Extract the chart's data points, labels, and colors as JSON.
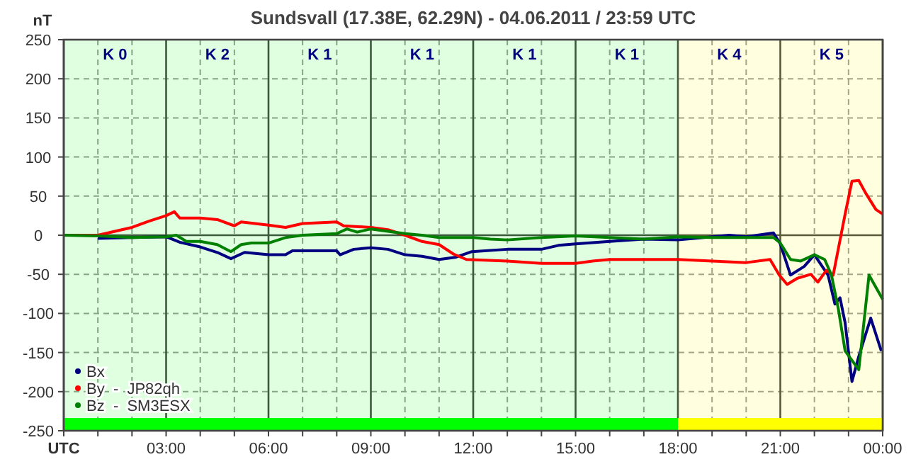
{
  "chart_data": {
    "type": "line",
    "title": "Sundsvall (17.38E, 62.29N) - 04.06.2011 / 23:59 UTC",
    "ylabel": "nT",
    "xlim": [
      0,
      24
    ],
    "ylim": [
      -250,
      250
    ],
    "xticks": [
      {
        "value": 0,
        "label": "UTC"
      },
      {
        "value": 1,
        "label": null
      },
      {
        "value": 2,
        "label": null
      },
      {
        "value": 3,
        "label": "03:00"
      },
      {
        "value": 4,
        "label": null
      },
      {
        "value": 5,
        "label": null
      },
      {
        "value": 6,
        "label": "06:00"
      },
      {
        "value": 7,
        "label": null
      },
      {
        "value": 8,
        "label": null
      },
      {
        "value": 9,
        "label": "09:00"
      },
      {
        "value": 10,
        "label": null
      },
      {
        "value": 11,
        "label": null
      },
      {
        "value": 12,
        "label": "12:00"
      },
      {
        "value": 13,
        "label": null
      },
      {
        "value": 14,
        "label": null
      },
      {
        "value": 15,
        "label": "15:00"
      },
      {
        "value": 16,
        "label": null
      },
      {
        "value": 17,
        "label": null
      },
      {
        "value": 18,
        "label": "18:00"
      },
      {
        "value": 19,
        "label": null
      },
      {
        "value": 20,
        "label": null
      },
      {
        "value": 21,
        "label": "21:00"
      },
      {
        "value": 22,
        "label": null
      },
      {
        "value": 23,
        "label": null
      },
      {
        "value": 24,
        "label": "00:00"
      }
    ],
    "yticks": [
      -250,
      -200,
      -150,
      -100,
      -50,
      0,
      50,
      100,
      150,
      200,
      250
    ],
    "grid": true,
    "legend": "bottom left",
    "marker": "none",
    "line_style": "solid",
    "annotations": [
      "K 0",
      "K 2",
      "K 1",
      "K 1",
      "K 1",
      "K 1",
      "K 4",
      "K 5"
    ],
    "bands": [
      {
        "axis": "x",
        "from": 0,
        "to": 18,
        "color": "#00ff00"
      },
      {
        "axis": "x",
        "from": 18,
        "to": 24,
        "color": "#ffff00"
      }
    ],
    "series": [
      {
        "name": "Bx",
        "color": "#000080",
        "x": [
          1,
          2,
          3,
          3.4,
          4,
          4.5,
          4.9,
          5.3,
          6,
          6.5,
          6.7,
          8,
          8.1,
          8.5,
          9,
          9.5,
          10,
          10.5,
          11,
          11.5,
          11.96,
          13,
          14,
          14.5,
          15,
          16,
          17,
          18,
          19,
          19.5,
          20,
          20.8,
          21,
          21.3,
          21.7,
          22,
          22.4,
          22.6,
          22.75,
          22.9,
          23.1,
          23.3,
          23.65,
          23.96
        ],
        "values": [
          -4,
          -3,
          -2,
          -9,
          -15,
          -22,
          -30,
          -22,
          -25,
          -25,
          -20,
          -20,
          -25,
          -18,
          -16,
          -18,
          -25,
          -27,
          -31,
          -28,
          -21,
          -18,
          -18,
          -13,
          -11,
          -8,
          -5,
          -6,
          -2,
          0,
          -2,
          3,
          -11,
          -51,
          -40,
          -25,
          -51,
          -88,
          -80,
          -112,
          -187,
          -155,
          -106,
          -148
        ]
      },
      {
        "name": "By  -  JP82qh",
        "color": "#ff0000",
        "x": [
          0,
          1,
          1.5,
          2,
          2.5,
          3,
          3.24,
          3.4,
          4,
          4.5,
          5,
          5.2,
          6,
          6.5,
          7,
          8,
          8.2,
          9,
          9.5,
          10,
          10.5,
          11,
          11.42,
          11.8,
          13,
          14,
          15,
          15.5,
          16,
          17,
          18,
          19,
          20,
          20.7,
          20.97,
          21.2,
          21.5,
          21.9,
          22.1,
          22.35,
          22.55,
          22.9,
          23.1,
          23.3,
          23.5,
          23.8,
          24
        ],
        "values": [
          0,
          0,
          5,
          10,
          18,
          25,
          30,
          22,
          22,
          20,
          12,
          17,
          13,
          10,
          15,
          17,
          12,
          10,
          7,
          0,
          -8,
          -12,
          -24,
          -31,
          -33,
          -36,
          -36,
          -33,
          -31,
          -31,
          -31,
          -33,
          -35,
          -31,
          -51,
          -63,
          -55,
          -50,
          -60,
          -45,
          -51,
          27,
          69,
          70,
          54,
          33,
          27
        ]
      },
      {
        "name": "Bz  -  SM3ESX",
        "color": "#008000",
        "x": [
          0,
          1,
          2,
          3,
          3.3,
          3.6,
          4,
          4.5,
          4.9,
          5.2,
          5.5,
          6,
          6.5,
          7,
          8,
          8.3,
          8.6,
          9,
          9.5,
          10,
          10.5,
          11,
          12,
          12.5,
          13,
          14,
          15,
          16,
          17,
          18,
          19,
          20,
          20.8,
          21,
          21.3,
          21.6,
          22,
          22.3,
          22.5,
          22.7,
          22.9,
          23.1,
          23.3,
          23.6,
          24
        ],
        "values": [
          0,
          -1,
          -3,
          -2,
          0,
          -8,
          -8,
          -12,
          -21,
          -12,
          -10,
          -10,
          -3,
          0,
          2,
          8,
          4,
          8,
          5,
          2,
          0,
          -3,
          -3,
          -5,
          -6,
          -3,
          -1,
          -3,
          -5,
          -2,
          -3,
          -3,
          -3,
          -10,
          -31,
          -33,
          -25,
          -31,
          -51,
          -94,
          -148,
          -160,
          -172,
          -51,
          -82
        ]
      }
    ]
  }
}
